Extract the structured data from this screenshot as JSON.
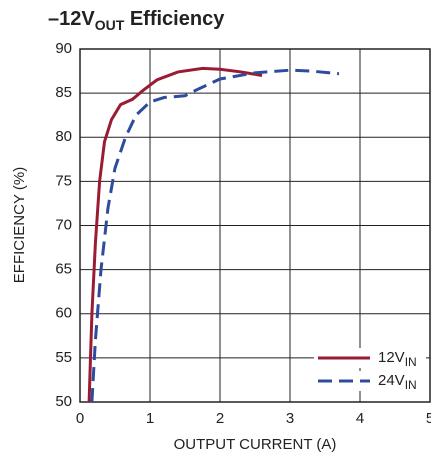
{
  "chart_data": {
    "type": "line",
    "title": "–12V",
    "title_sub": "OUT",
    "title_rest": " Efficiency",
    "x_label": "OUTPUT CURRENT (A)",
    "y_label": "EFFICIENCY (%)",
    "xlim": [
      0,
      5
    ],
    "xticks": [
      0,
      1,
      2,
      3,
      4,
      5
    ],
    "ylim": [
      50,
      90
    ],
    "yticks": [
      50,
      55,
      60,
      65,
      70,
      75,
      80,
      85,
      90
    ],
    "grid": true,
    "legend": "lower right",
    "series": [
      {
        "name": "12V",
        "name_sub": "IN",
        "color": "#9b1b35",
        "dash": false,
        "x": [
          0.13,
          0.17,
          0.22,
          0.28,
          0.35,
          0.45,
          0.58,
          0.75,
          0.9,
          1.1,
          1.4,
          1.75,
          2.0,
          2.3,
          2.6
        ],
        "values": [
          50,
          60,
          68,
          75,
          79.5,
          82,
          83.7,
          84.3,
          85.3,
          86.5,
          87.4,
          87.8,
          87.7,
          87.4,
          87.0
        ]
      },
      {
        "name": "24V",
        "name_sub": "IN",
        "color": "#2e4c9e",
        "dash": true,
        "x": [
          0.17,
          0.22,
          0.3,
          0.4,
          0.5,
          0.65,
          0.8,
          1.0,
          1.2,
          1.5,
          1.7,
          2.0,
          2.5,
          3.0,
          3.3,
          3.7
        ],
        "values": [
          50,
          57,
          65,
          72,
          76.5,
          80,
          82.5,
          84,
          84.5,
          84.7,
          85.5,
          86.6,
          87.3,
          87.6,
          87.5,
          87.2
        ]
      }
    ]
  }
}
